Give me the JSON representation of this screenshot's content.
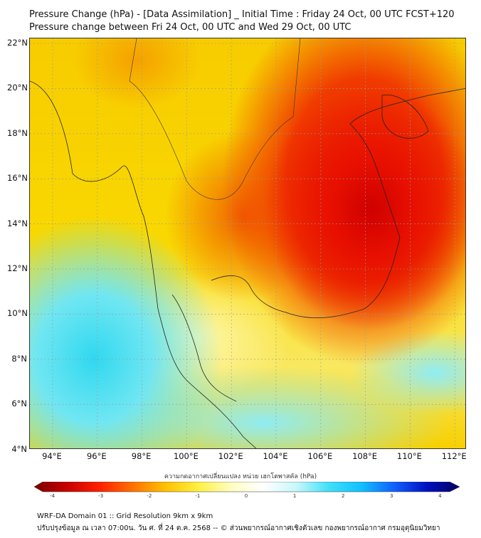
{
  "title": {
    "line1": "Pressure Change (hPa) - [Data Assimilation] _ Initial Time : Friday 24 Oct, 00 UTC FCST+120",
    "line2": "Pressure change between Fri 24 Oct, 00 UTC and Wed 29 Oct, 00 UTC"
  },
  "map": {
    "lat_labels": [
      "22°N",
      "20°N",
      "18°N",
      "16°N",
      "14°N",
      "12°N",
      "10°N",
      "8°N",
      "6°N",
      "4°N"
    ],
    "lon_labels": [
      "94°E",
      "96°E",
      "98°E",
      "100°E",
      "102°E",
      "104°E",
      "106°E",
      "108°E",
      "110°E",
      "112°E"
    ]
  },
  "colorbar": {
    "title": "ความกดอากาศเปลี่ยนแปลง หน่วย เฮกโตพาสคัล (hPa)",
    "ticks": [
      "-4",
      "-3",
      "-2",
      "-1",
      "0",
      "1",
      "2",
      "3",
      "4"
    ],
    "range": [
      -4.2,
      4.2
    ],
    "colors": [
      "#7a0000",
      "#c80000",
      "#ff2000",
      "#ff7000",
      "#ffc000",
      "#fff040",
      "#fffdc0",
      "#ffffff",
      "#c8f8fa",
      "#40e0f8",
      "#10c0ff",
      "#1060ff",
      "#0010c0",
      "#000060"
    ]
  },
  "footer": {
    "line1": "WRF-DA Domain 01 :: Grid Resolution 9km x 9km",
    "line2": "ปรับปรุงข้อมูล ณ เวลา 07:00น. วัน ศ. ที่ 24 ต.ค. 2568 -- © ส่วนพยากรณ์อากาศเชิงตัวเลข กองพยากรณ์อากาศ กรมอุตุนิยมวิทยา"
  }
}
